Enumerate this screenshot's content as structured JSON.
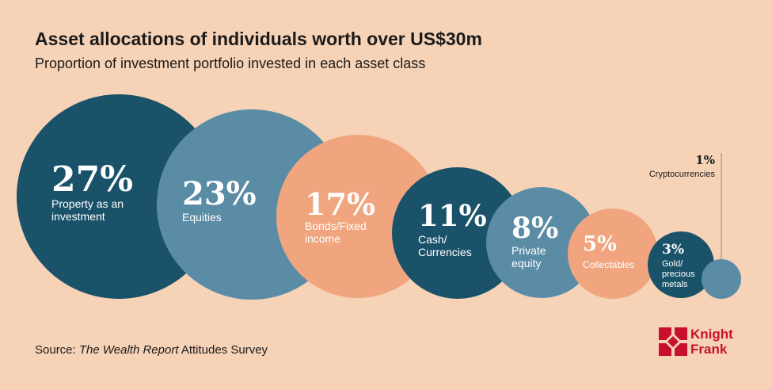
{
  "title": "Asset allocations of individuals worth over US$30m",
  "subtitle": "Proportion of investment portfolio invested in each asset class",
  "source": {
    "prefix": "Source: ",
    "italic": "The Wealth Report",
    "suffix": " Attitudes Survey"
  },
  "logo": {
    "line1": "Knight",
    "line2": "Frank",
    "color": "#c8102e"
  },
  "chart_data": {
    "type": "bubble",
    "title": "Asset allocations of individuals worth over US$30m",
    "subtitle": "Proportion of investment portfolio invested in each asset class",
    "unit": "%",
    "categories": [
      "Property as an investment",
      "Equities",
      "Bonds/Fixed income",
      "Cash/ Currencies",
      "Private equity",
      "Collectables",
      "Gold/ precious metals",
      "Cryptocurrencies"
    ],
    "values": [
      27,
      23,
      17,
      11,
      8,
      5,
      3,
      1
    ],
    "value_labels": [
      "27%",
      "23%",
      "17%",
      "11%",
      "8%",
      "5%",
      "3%",
      "1%"
    ],
    "label_lines": [
      [
        "Property as an",
        "investment"
      ],
      [
        "Equities"
      ],
      [
        "Bonds/Fixed",
        "income"
      ],
      [
        "Cash/",
        "Currencies"
      ],
      [
        "Private",
        "equity"
      ],
      [
        "Collectables"
      ],
      [
        "Gold/",
        "precious",
        "metals"
      ],
      [
        "Cryptocurrencies"
      ]
    ],
    "colors": [
      "#1a5269",
      "#5b8ca5",
      "#f0a57e",
      "#1a5269",
      "#5b8ca5",
      "#f0a57e",
      "#1a5269",
      "#5b8ca5"
    ],
    "background": "#f6d2b6",
    "label_color": "#ffffff",
    "callout_label_color": "#1b1b1b"
  }
}
